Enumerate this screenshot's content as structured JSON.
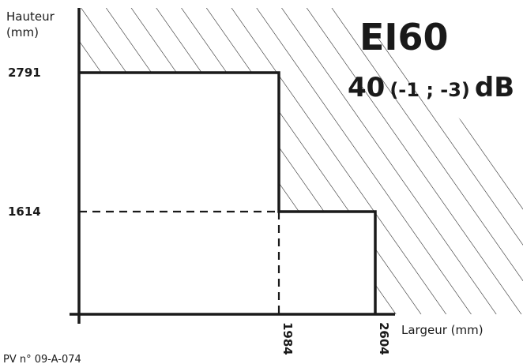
{
  "y_axis_title_line1": "Hauteur",
  "y_axis_title_line2": "(mm)",
  "x_axis_title": "Largeur (mm)",
  "y_ticks": [
    "2791",
    "1614"
  ],
  "x_ticks": [
    "1984",
    "2604"
  ],
  "fire_rating": "EI60",
  "acoustic": {
    "value": "40",
    "correction": "(-1 ; -3)",
    "unit": "dB"
  },
  "reference": "PV n° 09-A-074",
  "colors": {
    "ink": "#1a1a1a",
    "background": "#ffffff"
  }
}
